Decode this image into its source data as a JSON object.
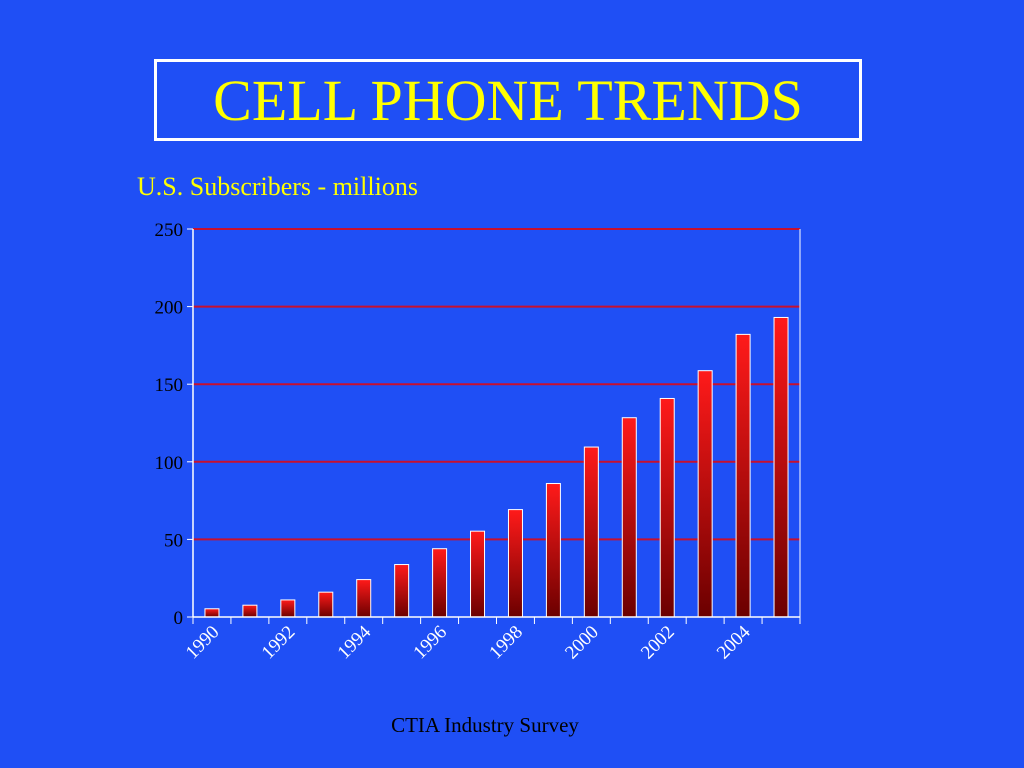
{
  "colors": {
    "background": "#1f4ff5",
    "title": "#ffff00",
    "bar_top": "#ff1a1a",
    "bar_bottom": "#6b0000",
    "gridline": "#c8102e",
    "axis": "#ffffff"
  },
  "slide": {
    "title": "CELL PHONE TRENDS",
    "source": "CTIA Industry Survey"
  },
  "chart_data": {
    "type": "bar",
    "title": "U.S. Subscribers - millions",
    "categories": [
      "1990",
      "1991",
      "1992",
      "1993",
      "1994",
      "1995",
      "1996",
      "1997",
      "1998",
      "1999",
      "2000",
      "2001",
      "2002",
      "2003",
      "2004",
      "2005"
    ],
    "x_tick_labels": [
      "1990",
      "1992",
      "1994",
      "1996",
      "1998",
      "2000",
      "2002",
      "2004"
    ],
    "values": [
      5.3,
      7.6,
      11.0,
      16.0,
      24.1,
      33.8,
      44.0,
      55.3,
      69.2,
      86.0,
      109.5,
      128.4,
      140.8,
      158.7,
      182.1,
      193.0
    ],
    "ylim": [
      0,
      250
    ],
    "yticks": [
      0,
      50,
      100,
      150,
      200,
      250
    ],
    "xlabel": "",
    "ylabel": "",
    "grid": true
  }
}
